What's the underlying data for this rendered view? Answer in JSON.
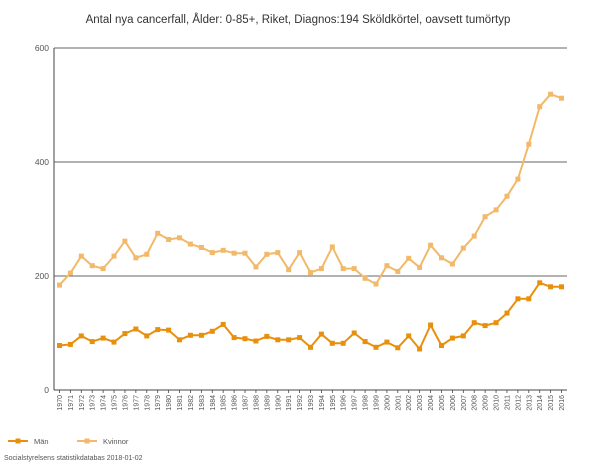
{
  "chart_data": {
    "type": "line",
    "title": "Antal nya cancerfall, Ålder: 0-85+, Riket, Diagnos:194 Sköldkörtel, oavsett tumörtyp",
    "xlabel": "",
    "ylabel": "",
    "ylim": [
      0,
      600
    ],
    "yticks": [
      "0",
      "200",
      "400",
      "600"
    ],
    "grid": true,
    "legend_position": "bottom-left",
    "x": [
      "1970",
      "1971",
      "1972",
      "1973",
      "1974",
      "1975",
      "1976",
      "1977",
      "1978",
      "1979",
      "1980",
      "1981",
      "1982",
      "1983",
      "1984",
      "1985",
      "1986",
      "1987",
      "1988",
      "1989",
      "1990",
      "1991",
      "1992",
      "1993",
      "1994",
      "1995",
      "1996",
      "1997",
      "1998",
      "1999",
      "2000",
      "2001",
      "2002",
      "2003",
      "2004",
      "2005",
      "2006",
      "2007",
      "2008",
      "2009",
      "2010",
      "2011",
      "2012",
      "2013",
      "2014",
      "2015",
      "2016"
    ],
    "series": [
      {
        "name": "Män",
        "color": "#e8900c",
        "values": [
          78,
          80,
          95,
          85,
          91,
          84,
          99,
          107,
          95,
          106,
          105,
          88,
          96,
          96,
          103,
          115,
          92,
          90,
          86,
          94,
          88,
          88,
          92,
          75,
          98,
          82,
          82,
          100,
          85,
          75,
          84,
          74,
          95,
          72,
          114,
          78,
          91,
          95,
          118,
          113,
          118,
          135,
          160,
          160,
          188,
          181,
          181
        ]
      },
      {
        "name": "Kvinnor",
        "color": "#f2b96a",
        "values": [
          184,
          205,
          235,
          218,
          213,
          235,
          261,
          232,
          238,
          275,
          264,
          267,
          256,
          250,
          241,
          245,
          240,
          240,
          216,
          238,
          241,
          211,
          241,
          206,
          213,
          251,
          213,
          213,
          196,
          186,
          218,
          208,
          231,
          215,
          254,
          232,
          221,
          249,
          270,
          304,
          316,
          340,
          370,
          431,
          497,
          519,
          512
        ]
      }
    ]
  },
  "source": "Socialstyrelsens statistikdatabas 2018-01-02"
}
